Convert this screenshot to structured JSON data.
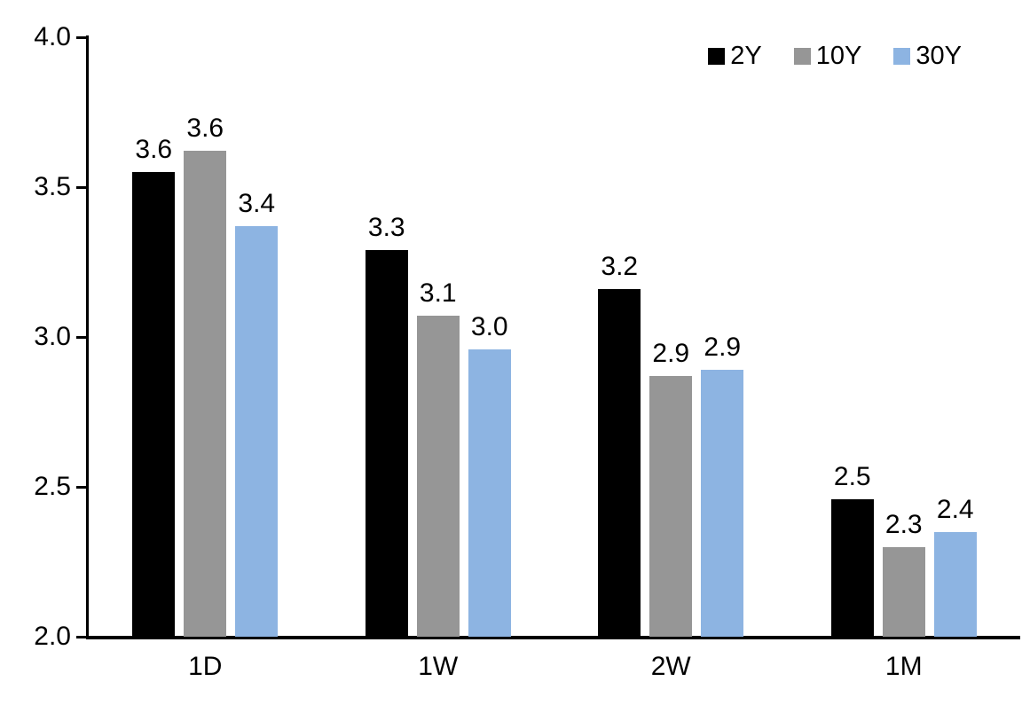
{
  "chart_data": {
    "type": "bar",
    "title": "",
    "xlabel": "",
    "ylabel": "",
    "categories": [
      "1D",
      "1W",
      "2W",
      "1M"
    ],
    "series": [
      {
        "name": "2Y",
        "color": "#000000",
        "values": [
          3.55,
          3.29,
          3.16,
          2.46
        ],
        "labels": [
          "3.6",
          "3.3",
          "3.2",
          "2.5"
        ]
      },
      {
        "name": "10Y",
        "color": "#969696",
        "values": [
          3.62,
          3.07,
          2.87,
          2.3
        ],
        "labels": [
          "3.6",
          "3.1",
          "2.9",
          "2.3"
        ]
      },
      {
        "name": "30Y",
        "color": "#8DB4E2",
        "values": [
          3.37,
          2.96,
          2.89,
          2.35
        ],
        "labels": [
          "3.4",
          "3.0",
          "2.9",
          "2.4"
        ]
      }
    ],
    "ylim": [
      2.0,
      4.0
    ],
    "yticks": [
      4.0,
      3.5,
      3.0,
      2.5,
      2.0
    ],
    "ytick_labels": [
      "4.0",
      "3.5",
      "3.0",
      "2.5",
      "2.0"
    ],
    "grid": false,
    "legend_position": "top-right",
    "axis_color": "#000000",
    "text_color": "#000000",
    "background_color": "#ffffff"
  }
}
